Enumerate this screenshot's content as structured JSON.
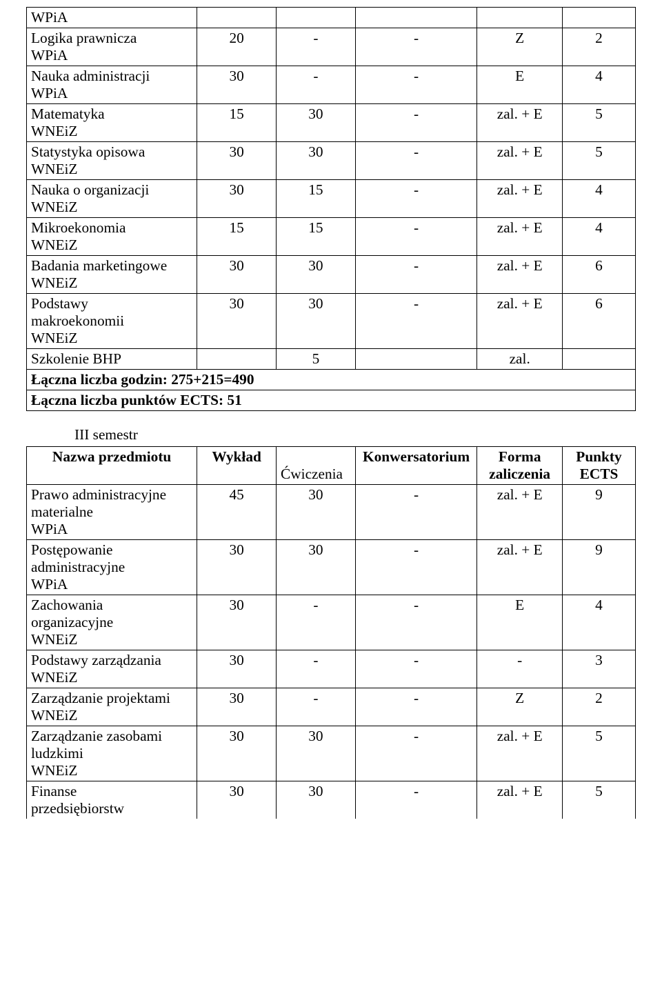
{
  "table1": {
    "rows": [
      {
        "name": "WPiA",
        "c1": "",
        "c2": "",
        "c3": "",
        "c4": "",
        "c5": ""
      },
      {
        "name": "Logika prawnicza\nWPiA",
        "c1": "20",
        "c2": "-",
        "c3": "-",
        "c4": "Z",
        "c5": "2"
      },
      {
        "name": "Nauka administracji\nWPiA",
        "c1": "30",
        "c2": "-",
        "c3": "-",
        "c4": "E",
        "c5": "4"
      },
      {
        "name": "Matematyka\nWNEiZ",
        "c1": "15",
        "c2": "30",
        "c3": "-",
        "c4": "zal. + E",
        "c5": "5"
      },
      {
        "name": "Statystyka opisowa\nWNEiZ",
        "c1": "30",
        "c2": "30",
        "c3": "-",
        "c4": "zal. + E",
        "c5": "5"
      },
      {
        "name": "Nauka o organizacji\nWNEiZ",
        "c1": "30",
        "c2": "15",
        "c3": "-",
        "c4": "zal. + E",
        "c5": "4"
      },
      {
        "name": "Mikroekonomia\nWNEiZ",
        "c1": "15",
        "c2": "15",
        "c3": "-",
        "c4": "zal. + E",
        "c5": "4"
      },
      {
        "name": "Badania marketingowe\nWNEiZ",
        "c1": "30",
        "c2": "30",
        "c3": "-",
        "c4": "zal. + E",
        "c5": "6"
      },
      {
        "name": "Podstawy\nmakroekonomii\nWNEiZ",
        "c1": "30",
        "c2": "30",
        "c3": "-",
        "c4": "zal. + E",
        "c5": "6"
      },
      {
        "name": "Szkolenie BHP",
        "c1": "",
        "c2": "5",
        "c3": "",
        "c4": "zal.",
        "c5": ""
      }
    ],
    "summary_hours": "Łączna liczba godzin: 275+215=490",
    "summary_ects": "Łączna liczba punktów ECTS: 51"
  },
  "semester_label": "III semestr",
  "table2": {
    "header": {
      "col_name": "Nazwa przedmiotu",
      "col_wyklad": "Wykład",
      "col_cwiczenia": "Ćwiczenia",
      "col_konw": "Konwersatorium",
      "col_forma": "Forma\nzaliczenia",
      "col_ects": "Punkty\nECTS"
    },
    "rows": [
      {
        "name": "Prawo administracyjne\nmaterialne\nWPiA",
        "c1": "45",
        "c2": "30",
        "c3": "-",
        "c4": "zal. + E",
        "c5": "9"
      },
      {
        "name": "Postępowanie\nadministracyjne\nWPiA",
        "c1": "30",
        "c2": "30",
        "c3": "-",
        "c4": "zal. + E",
        "c5": "9"
      },
      {
        "name": "Zachowania\norganizacyjne\nWNEiZ",
        "c1": "30",
        "c2": "-",
        "c3": "-",
        "c4": "E",
        "c5": "4"
      },
      {
        "name": "Podstawy zarządzania\nWNEiZ",
        "c1": "30",
        "c2": "-",
        "c3": "-",
        "c4": "-",
        "c5": "3"
      },
      {
        "name": "Zarządzanie projektami\nWNEiZ",
        "c1": "30",
        "c2": "-",
        "c3": "-",
        "c4": "Z",
        "c5": "2"
      },
      {
        "name": "Zarządzanie zasobami\nludzkimi\nWNEiZ",
        "c1": "30",
        "c2": "30",
        "c3": "-",
        "c4": "zal. + E",
        "c5": "5"
      },
      {
        "name": "Finanse\nprzedsiębiorstw",
        "c1": "30",
        "c2": "30",
        "c3": "-",
        "c4": "zal. + E",
        "c5": "5"
      }
    ]
  }
}
